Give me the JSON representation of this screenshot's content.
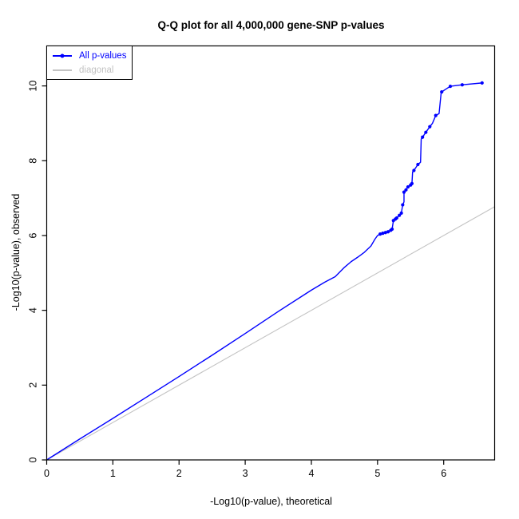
{
  "chart_data": {
    "type": "line",
    "title": "Q-Q plot for all 4,000,000 gene-SNP p-values",
    "xlabel": "-Log10(p-value), theoretical",
    "ylabel": "-Log10(p-value), observed",
    "xlim": [
      0,
      6.77
    ],
    "ylim": [
      0,
      11.07
    ],
    "x_ticks": [
      0,
      1,
      2,
      3,
      4,
      5,
      6
    ],
    "y_ticks": [
      0,
      2,
      4,
      6,
      8,
      10
    ],
    "grid": false,
    "legend_position": "top-left",
    "colors": {
      "series_blue": "#0000ff",
      "series_gray": "#c3c3c3",
      "axis": "#000000",
      "background": "#ffffff"
    },
    "series": [
      {
        "name": "All p-values",
        "color": "#0000ff",
        "marker": "circle",
        "points": [
          [
            0,
            0
          ],
          [
            0.5,
            0.56
          ],
          [
            1,
            1.11
          ],
          [
            1.5,
            1.67
          ],
          [
            2,
            2.23
          ],
          [
            2.5,
            2.8
          ],
          [
            3,
            3.38
          ],
          [
            3.5,
            3.97
          ],
          [
            4,
            4.54
          ],
          [
            4.2,
            4.75
          ],
          [
            4.36,
            4.9
          ],
          [
            4.5,
            5.15
          ],
          [
            4.6,
            5.3
          ],
          [
            4.7,
            5.42
          ],
          [
            4.8,
            5.55
          ],
          [
            4.9,
            5.72
          ],
          [
            4.96,
            5.9
          ],
          [
            5.0,
            6.0
          ],
          [
            5.04,
            6.04
          ],
          [
            5.1,
            6.07
          ],
          [
            5.16,
            6.1
          ],
          [
            5.2,
            6.14
          ],
          [
            5.22,
            6.17
          ],
          [
            5.24,
            6.4
          ],
          [
            5.27,
            6.44
          ],
          [
            5.29,
            6.47
          ],
          [
            5.33,
            6.54
          ],
          [
            5.36,
            6.6
          ],
          [
            5.38,
            6.82
          ],
          [
            5.4,
            6.9
          ],
          [
            5.4,
            7.16
          ],
          [
            5.43,
            7.22
          ],
          [
            5.46,
            7.3
          ],
          [
            5.5,
            7.35
          ],
          [
            5.52,
            7.39
          ],
          [
            5.53,
            7.7
          ],
          [
            5.55,
            7.74
          ],
          [
            5.61,
            7.9
          ],
          [
            5.65,
            7.96
          ],
          [
            5.66,
            8.58
          ],
          [
            5.68,
            8.63
          ],
          [
            5.73,
            8.76
          ],
          [
            5.79,
            8.91
          ],
          [
            5.83,
            9.0
          ],
          [
            5.88,
            9.21
          ],
          [
            5.93,
            9.26
          ],
          [
            5.96,
            9.79
          ],
          [
            5.97,
            9.84
          ],
          [
            6.02,
            9.9
          ],
          [
            6.1,
            9.99
          ],
          [
            6.28,
            10.03
          ],
          [
            6.58,
            10.08
          ]
        ],
        "marker_points": [
          [
            5.04,
            6.04
          ],
          [
            5.08,
            6.06
          ],
          [
            5.12,
            6.08
          ],
          [
            5.16,
            6.1
          ],
          [
            5.2,
            6.14
          ],
          [
            5.22,
            6.17
          ],
          [
            5.24,
            6.4
          ],
          [
            5.27,
            6.44
          ],
          [
            5.29,
            6.47
          ],
          [
            5.33,
            6.54
          ],
          [
            5.36,
            6.6
          ],
          [
            5.38,
            6.82
          ],
          [
            5.4,
            7.16
          ],
          [
            5.43,
            7.22
          ],
          [
            5.46,
            7.3
          ],
          [
            5.5,
            7.35
          ],
          [
            5.52,
            7.39
          ],
          [
            5.55,
            7.74
          ],
          [
            5.61,
            7.9
          ],
          [
            5.68,
            8.63
          ],
          [
            5.73,
            8.76
          ],
          [
            5.79,
            8.91
          ],
          [
            5.88,
            9.21
          ],
          [
            5.97,
            9.84
          ],
          [
            6.1,
            9.99
          ],
          [
            6.28,
            10.03
          ],
          [
            6.58,
            10.08
          ]
        ]
      },
      {
        "name": "diagonal",
        "color": "#c3c3c3",
        "marker": "none",
        "points": [
          [
            0,
            0
          ],
          [
            6.77,
            6.77
          ]
        ]
      }
    ]
  }
}
